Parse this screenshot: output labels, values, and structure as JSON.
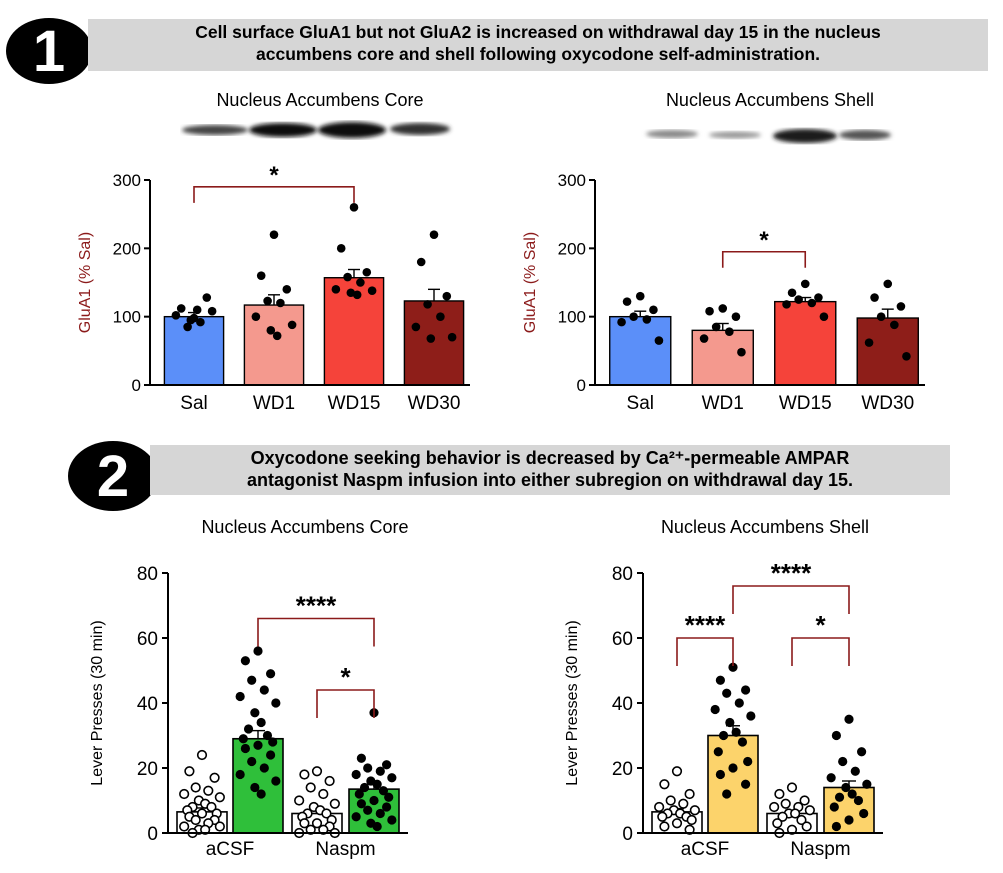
{
  "section1": {
    "number": "1",
    "title_line1": "Cell surface GluA1 but not GluA2 is increased on withdrawal day 15 in the nucleus",
    "title_line2": "accumbens core and shell following oxycodone self-administration."
  },
  "section2": {
    "number": "2",
    "title_line1": "Oxycodone seeking behavior is decreased by Ca²⁺-permeable AMPAR",
    "title_line2": "antagonist Naspm infusion into either subregion on withdrawal day 15."
  },
  "panel_titles": {
    "core_top": "Nucleus Accumbens Core",
    "shell_top": "Nucleus Accumbens Shell",
    "core_bottom": "Nucleus Accumbens Core",
    "shell_bottom": "Nucleus Accumbens Shell"
  },
  "colors": {
    "sal": "#5b8ff9",
    "wd1": "#f4998e",
    "wd15": "#f5433a",
    "wd30": "#8e1e19",
    "axis_label_red": "#8b1a1a",
    "green": "#2fbf3a",
    "yellow": "#fcd36b",
    "bracket": "#8b1a1a"
  },
  "chart_data": [
    {
      "id": "core_glua1",
      "type": "bar",
      "ylabel": "GluA1 (% Sal)",
      "ylim": [
        0,
        300
      ],
      "yticks": [
        "0",
        "100",
        "200",
        "300"
      ],
      "categories": [
        "Sal",
        "WD1",
        "WD15",
        "WD30"
      ],
      "values": [
        100,
        117,
        157,
        123
      ],
      "sem": [
        6,
        15,
        12,
        17
      ],
      "points": [
        [
          98,
          112,
          128,
          85,
          92,
          102,
          108,
          95,
          110
        ],
        [
          220,
          160,
          140,
          123,
          120,
          100,
          88,
          80,
          72
        ],
        [
          260,
          200,
          165,
          158,
          150,
          140,
          138,
          135,
          132
        ],
        [
          220,
          180,
          130,
          118,
          100,
          85,
          70,
          68
        ]
      ],
      "significance": [
        {
          "from": 0,
          "to": 2,
          "label": "*"
        }
      ]
    },
    {
      "id": "shell_glua1",
      "type": "bar",
      "ylabel": "GluA1 (% Sal)",
      "ylim": [
        0,
        300
      ],
      "yticks": [
        "0",
        "100",
        "200",
        "300"
      ],
      "categories": [
        "Sal",
        "WD1",
        "WD15",
        "WD30"
      ],
      "values": [
        100,
        80,
        122,
        98
      ],
      "sem": [
        8,
        10,
        6,
        13
      ],
      "points": [
        [
          130,
          122,
          110,
          100,
          96,
          92,
          65
        ],
        [
          112,
          108,
          100,
          85,
          78,
          68,
          48
        ],
        [
          148,
          135,
          128,
          125,
          120,
          118,
          100
        ],
        [
          148,
          128,
          115,
          100,
          88,
          62,
          42
        ]
      ],
      "significance": [
        {
          "from": 1,
          "to": 2,
          "label": "*"
        }
      ]
    },
    {
      "id": "core_lever",
      "type": "bar",
      "ylabel": "Lever Presses (30 min)",
      "ylim": [
        0,
        80
      ],
      "yticks": [
        "0",
        "20",
        "40",
        "60",
        "80"
      ],
      "categories": [
        "aCSF",
        "Naspm"
      ],
      "bars": [
        {
          "group": 0,
          "filled": false,
          "value": 6.5,
          "sem": 1.2,
          "points": [
            24,
            19,
            17,
            14,
            13,
            12,
            11,
            10,
            9,
            8,
            8,
            7,
            6,
            6,
            5,
            4,
            4,
            3,
            2,
            2,
            1,
            1,
            0
          ]
        },
        {
          "group": 0,
          "filled": true,
          "value": 29,
          "sem": 2.5,
          "points": [
            56,
            53,
            49,
            47,
            44,
            42,
            40,
            37,
            34,
            32,
            30,
            29,
            28,
            27,
            26,
            24,
            22,
            20,
            18,
            16,
            14,
            12
          ]
        },
        {
          "group": 1,
          "filled": false,
          "value": 6,
          "sem": 1.0,
          "points": [
            19,
            18,
            16,
            14,
            12,
            10,
            9,
            8,
            7,
            6,
            6,
            5,
            4,
            3,
            3,
            2,
            1,
            1,
            0,
            0
          ]
        },
        {
          "group": 1,
          "filled": true,
          "value": 13.5,
          "sem": 1.5,
          "points": [
            37,
            23,
            21,
            20,
            19,
            18,
            17,
            16,
            15,
            14,
            13,
            12,
            11,
            10,
            9,
            8,
            7,
            6,
            5,
            4,
            3,
            2
          ]
        }
      ],
      "significance": [
        {
          "from": 1,
          "to": 3,
          "label": "****",
          "y": 66
        },
        {
          "from": 2,
          "to": 3,
          "label": "*",
          "y": 44
        }
      ]
    },
    {
      "id": "shell_lever",
      "type": "bar",
      "ylabel": "Lever Presses (30 min)",
      "ylim": [
        0,
        80
      ],
      "yticks": [
        "0",
        "20",
        "40",
        "60",
        "80"
      ],
      "categories": [
        "aCSF",
        "Naspm"
      ],
      "bars": [
        {
          "group": 0,
          "filled": false,
          "value": 6.5,
          "sem": 1.0,
          "points": [
            19,
            15,
            12,
            10,
            9,
            8,
            7,
            7,
            6,
            6,
            5,
            5,
            4,
            3,
            2,
            1
          ]
        },
        {
          "group": 0,
          "filled": true,
          "value": 30,
          "sem": 3,
          "points": [
            51,
            47,
            44,
            43,
            40,
            38,
            36,
            34,
            31,
            30,
            28,
            25,
            22,
            20,
            18,
            15,
            12
          ]
        },
        {
          "group": 1,
          "filled": false,
          "value": 6,
          "sem": 1.0,
          "points": [
            14,
            12,
            10,
            9,
            8,
            8,
            7,
            6,
            6,
            5,
            4,
            3,
            2,
            1,
            0
          ]
        },
        {
          "group": 1,
          "filled": true,
          "value": 14,
          "sem": 2,
          "points": [
            35,
            30,
            25,
            22,
            19,
            17,
            15,
            14,
            12,
            11,
            10,
            8,
            6,
            4,
            2
          ]
        }
      ],
      "significance": [
        {
          "from": 0,
          "to": 1,
          "label": "****",
          "y": 60
        },
        {
          "from": 1,
          "to": 3,
          "label": "****",
          "y": 76
        },
        {
          "from": 2,
          "to": 3,
          "label": "*",
          "y": 60
        }
      ]
    }
  ]
}
